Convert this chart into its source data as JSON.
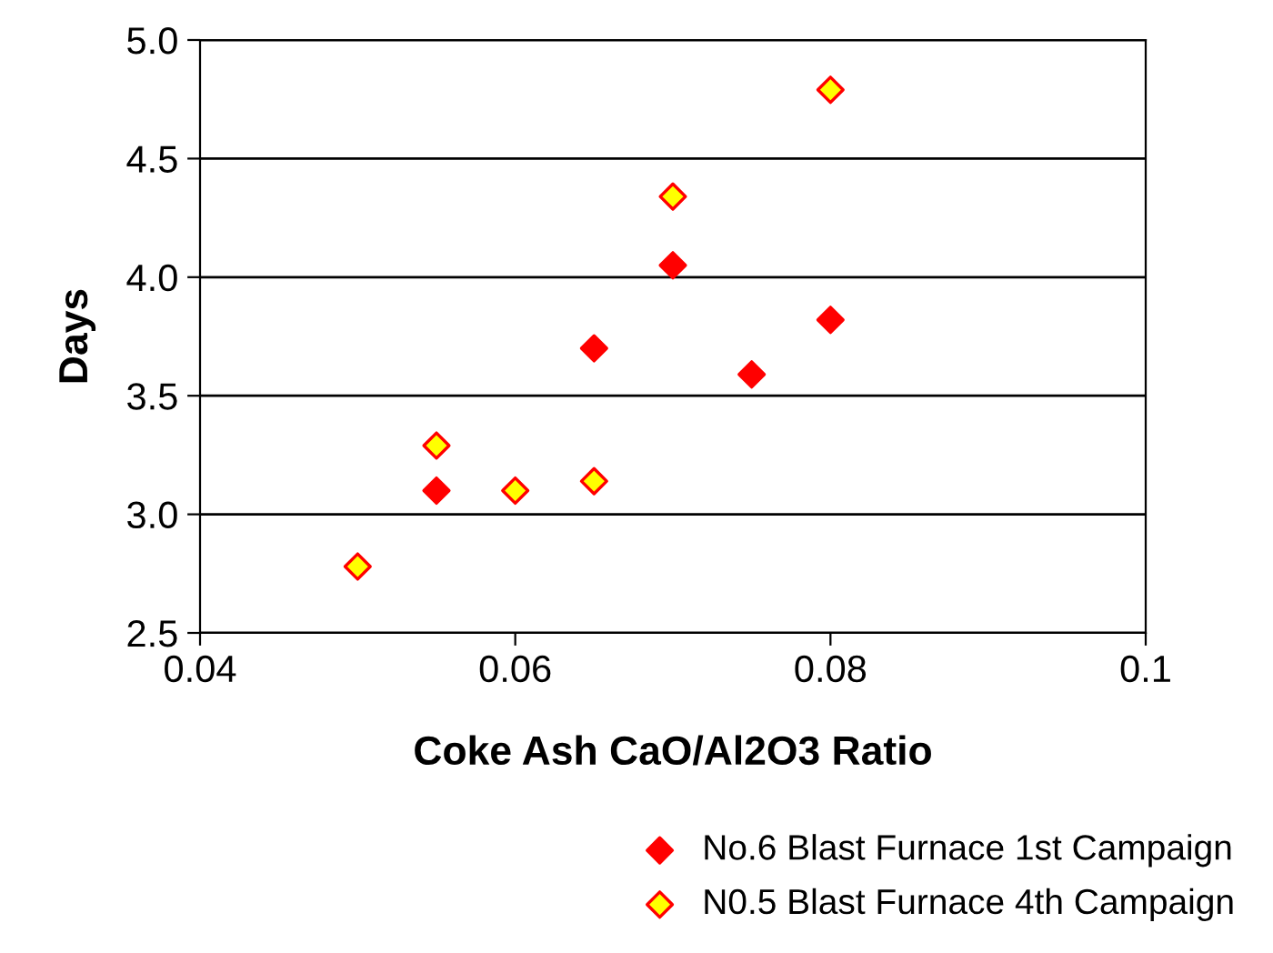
{
  "chart_data": {
    "type": "scatter",
    "xlabel": "Coke Ash CaO/Al2O3 Ratio",
    "ylabel": "Days",
    "xlim": [
      0.04,
      0.1
    ],
    "xticks": [
      0.04,
      0.06,
      0.08,
      0.1
    ],
    "ylim": [
      2.5,
      5.0
    ],
    "yticks": [
      {
        "value": 2.5,
        "label": "2.5"
      },
      {
        "value": 3.0,
        "label": "3.0"
      },
      {
        "value": 3.5,
        "label": "3.5"
      },
      {
        "value": 4.0,
        "label": "4.0"
      },
      {
        "value": 4.5,
        "label": "4.5"
      },
      {
        "value": 5.0,
        "label": "5.0"
      }
    ],
    "grid": "y",
    "legend": "bottom",
    "marker": "diamond",
    "series": [
      {
        "name": "No.6 Blast Furnace 1st Campaign",
        "color": "#ff0000",
        "x": [
          0.055,
          0.065,
          0.07,
          0.075,
          0.08
        ],
        "values": [
          3.1,
          3.7,
          4.05,
          3.59,
          3.82
        ]
      },
      {
        "name": "N0.5 Blast Furnace 4th Campaign",
        "color": "#ffff00",
        "x": [
          0.05,
          0.055,
          0.06,
          0.065,
          0.07,
          0.08
        ],
        "values": [
          2.78,
          3.29,
          3.1,
          3.14,
          4.34,
          4.79
        ]
      }
    ]
  }
}
